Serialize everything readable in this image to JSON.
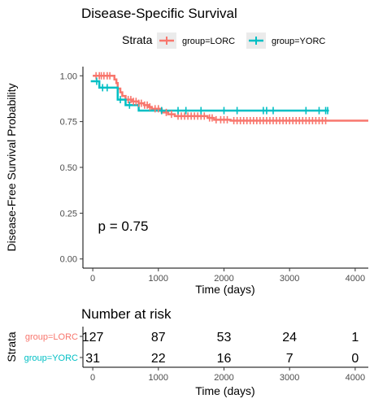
{
  "chart_data": [
    {
      "type": "line",
      "subtype": "kaplan-meier-step",
      "title": "Disease-Specific Survival",
      "xlabel": "Time (days)",
      "ylabel": "Disease-Free Survival Probability",
      "xlim": [
        -150,
        4200
      ],
      "ylim": [
        -0.05,
        1.05
      ],
      "xticks": [
        0,
        1000,
        2000,
        3000,
        4000
      ],
      "xtick_labels": [
        "0",
        "1000",
        "2000",
        "3000",
        "4000"
      ],
      "yticks": [
        0,
        0.25,
        0.5,
        0.75,
        1.0
      ],
      "ytick_labels": [
        "0.00",
        "0.25",
        "0.50",
        "0.75",
        "1.00"
      ],
      "grid": false,
      "legend": {
        "title": "Strata",
        "position": "top"
      },
      "annotation": "p = 0.75",
      "annotation_at": [
        80,
        0.18
      ],
      "series": [
        {
          "name": "group=LORC",
          "color": "#F8766D",
          "steps": [
            [
              0,
              1.0
            ],
            [
              300,
              1.0
            ],
            [
              330,
              0.98
            ],
            [
              360,
              0.96
            ],
            [
              380,
              0.93
            ],
            [
              420,
              0.91
            ],
            [
              450,
              0.89
            ],
            [
              500,
              0.87
            ],
            [
              600,
              0.86
            ],
            [
              700,
              0.85
            ],
            [
              780,
              0.84
            ],
            [
              850,
              0.83
            ],
            [
              900,
              0.82
            ],
            [
              1050,
              0.8
            ],
            [
              1150,
              0.79
            ],
            [
              1250,
              0.78
            ],
            [
              1750,
              0.77
            ],
            [
              1850,
              0.76
            ],
            [
              2100,
              0.755
            ],
            [
              4200,
              0.755
            ]
          ],
          "censor_times": [
            50,
            100,
            130,
            170,
            220,
            260,
            540,
            580,
            620,
            660,
            700,
            740,
            790,
            830,
            870,
            950,
            1000,
            1120,
            1200,
            1300,
            1350,
            1400,
            1450,
            1500,
            1550,
            1600,
            1650,
            1700,
            1780,
            1820,
            1880,
            1950,
            2000,
            2050,
            2150,
            2200,
            2250,
            2300,
            2350,
            2400,
            2450,
            2500,
            2550,
            2600,
            2650,
            2700,
            2750,
            2800,
            2850,
            2900,
            2950,
            3000,
            3050,
            3100,
            3150,
            3200,
            3250,
            3300,
            3350,
            3400,
            3450,
            3500,
            3550
          ]
        },
        {
          "name": "group=YORC",
          "color": "#00BFC4",
          "steps": [
            [
              -30,
              0.97
            ],
            [
              50,
              0.97
            ],
            [
              100,
              0.935
            ],
            [
              300,
              0.935
            ],
            [
              380,
              0.87
            ],
            [
              500,
              0.84
            ],
            [
              700,
              0.81
            ],
            [
              3600,
              0.81
            ]
          ],
          "censor_times": [
            60,
            150,
            220,
            420,
            560,
            1050,
            1300,
            1420,
            1650,
            2000,
            2200,
            2600,
            2650,
            2750,
            3250,
            3450,
            3550,
            3580
          ]
        }
      ]
    },
    {
      "type": "table",
      "title": "Number at risk",
      "ylabel": "Strata",
      "xlabel": "Time (days)",
      "xlim": [
        -150,
        4200
      ],
      "xticks": [
        0,
        1000,
        2000,
        3000,
        4000
      ],
      "xtick_labels": [
        "0",
        "1000",
        "2000",
        "3000",
        "4000"
      ],
      "rows": [
        {
          "name": "group=LORC",
          "color": "#F8766D",
          "values": [
            "127",
            "87",
            "53",
            "24",
            "1"
          ]
        },
        {
          "name": "group=YORC",
          "color": "#00BFC4",
          "values": [
            "31",
            "22",
            "16",
            "7",
            "0"
          ]
        }
      ]
    }
  ]
}
